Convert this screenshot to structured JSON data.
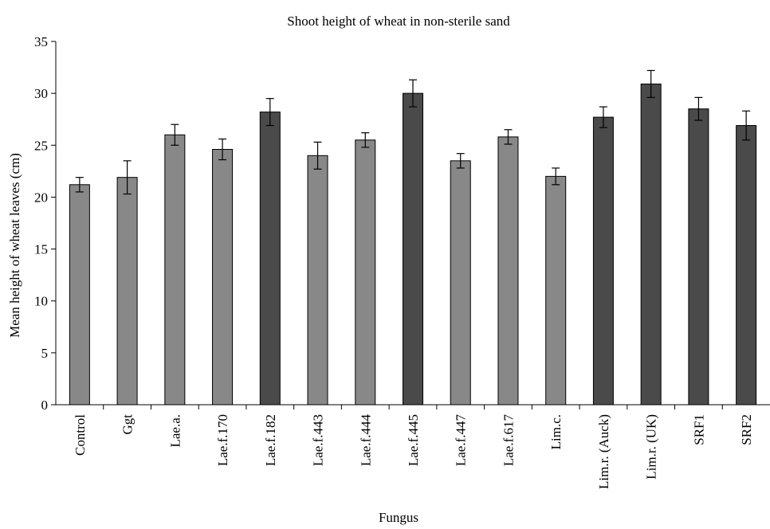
{
  "chart_data": {
    "type": "bar",
    "title": "Shoot height of wheat in non-sterile sand",
    "xlabel": "Fungus",
    "ylabel": "Mean height of wheat leaves (cm)",
    "ylim": [
      0,
      35
    ],
    "yticks": [
      0,
      5,
      10,
      15,
      20,
      25,
      30,
      35
    ],
    "grid": false,
    "legend": "none",
    "categories": [
      "Control",
      "Ggt",
      "Lae.a.",
      "Lae.f.170",
      "Lae.f.182",
      "Lae.f.443",
      "Lae.f.444",
      "Lae.f.445",
      "Lae.f.447",
      "Lae.f.617",
      "Lim.c.",
      "Lim.r. (Auck)",
      "Lim.r. (UK)",
      "SRF1",
      "SRF2"
    ],
    "values": [
      21.2,
      21.9,
      26.0,
      24.6,
      28.2,
      24.0,
      25.5,
      30.0,
      23.5,
      25.8,
      22.0,
      27.7,
      30.9,
      28.5,
      26.9
    ],
    "errors": [
      0.7,
      1.6,
      1.0,
      1.0,
      1.3,
      1.3,
      0.7,
      1.3,
      0.7,
      0.7,
      0.8,
      1.0,
      1.3,
      1.1,
      1.4
    ],
    "bar_colors": [
      "#888888",
      "#888888",
      "#888888",
      "#888888",
      "#4a4a4a",
      "#888888",
      "#888888",
      "#4a4a4a",
      "#888888",
      "#888888",
      "#888888",
      "#4a4a4a",
      "#4a4a4a",
      "#4a4a4a",
      "#4a4a4a"
    ]
  }
}
